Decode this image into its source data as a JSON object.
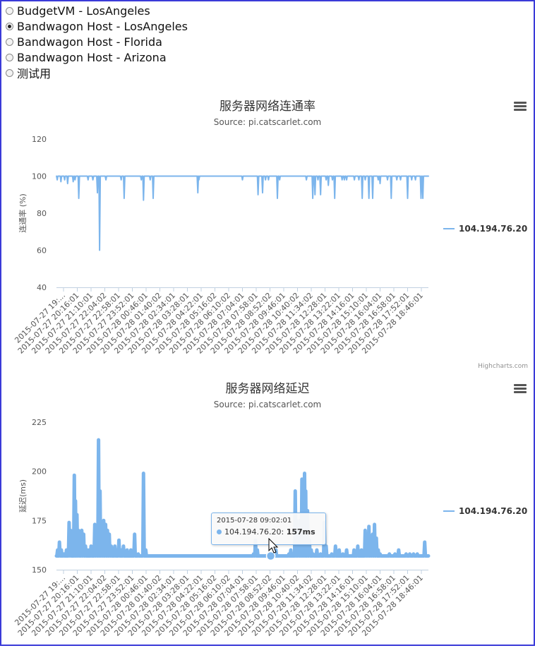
{
  "servers": [
    {
      "label": "BudgetVM - LosAngeles",
      "selected": false
    },
    {
      "label": "Bandwagon Host - LosAngeles",
      "selected": true
    },
    {
      "label": "Bandwagon Host - Florida",
      "selected": false
    },
    {
      "label": "Bandwagon Host - Arizona",
      "selected": false
    },
    {
      "label": "测试用",
      "selected": false
    }
  ],
  "credits": "Highcharts.com",
  "series_color": "#7cb5ec",
  "x_tick_labels": [
    "2015-07-27 19:...",
    "2015-07-27 20:16:01",
    "2015-07-27 21:10:01",
    "2015-07-27 22:04:02",
    "2015-07-27 22:58:01",
    "2015-07-27 23:52:01",
    "2015-07-28 00:46:01",
    "2015-07-28 01:40:02",
    "2015-07-28 02:34:01",
    "2015-07-28 03:28:01",
    "2015-07-28 04:22:01",
    "2015-07-28 05:16:02",
    "2015-07-28 06:10:02",
    "2015-07-28 07:04:01",
    "2015-07-28 07:58:01",
    "2015-07-28 08:52:02",
    "2015-07-28 09:46:01",
    "2015-07-28 10:40:02",
    "2015-07-28 11:34:02",
    "2015-07-28 12:28:01",
    "2015-07-28 13:22:01",
    "2015-07-28 14:16:01",
    "2015-07-28 15:10:01",
    "2015-07-28 16:04:01",
    "2015-07-28 16:58:01",
    "2015-07-28 17:52:01",
    "2015-07-28 18:46:01"
  ],
  "chart_data": [
    {
      "type": "line",
      "title": "服务器网络连通率",
      "subtitle": "Source: pi.catscarlet.com",
      "ylabel": "连通率 (%)",
      "ylim": [
        40,
        120
      ],
      "yticks": [
        40,
        60,
        80,
        100,
        120
      ],
      "legend_position": "right",
      "series": [
        {
          "name": "104.194.76.20",
          "baseline": 100,
          "dips": [
            [
              0.2,
              98
            ],
            [
              1.2,
              97
            ],
            [
              2.2,
              98
            ],
            [
              3.0,
              96
            ],
            [
              4.5,
              97
            ],
            [
              5.0,
              98
            ],
            [
              6.0,
              88
            ],
            [
              8.5,
              98
            ],
            [
              9.8,
              98
            ],
            [
              11.0,
              91
            ],
            [
              11.6,
              60
            ],
            [
              13.3,
              98
            ],
            [
              17.4,
              98
            ],
            [
              18.2,
              88
            ],
            [
              22.8,
              98
            ],
            [
              23.4,
              87
            ],
            [
              25.2,
              98
            ],
            [
              26.0,
              88
            ],
            [
              38.0,
              91
            ],
            [
              38.3,
              98
            ],
            [
              50.0,
              98
            ],
            [
              54.2,
              90
            ],
            [
              55.4,
              91
            ],
            [
              56.2,
              98
            ],
            [
              57.0,
              98
            ],
            [
              59.4,
              88
            ],
            [
              60.0,
              98
            ],
            [
              67.2,
              98
            ],
            [
              68.9,
              88
            ],
            [
              69.5,
              90
            ],
            [
              70.3,
              98
            ],
            [
              71.0,
              90
            ],
            [
              72.5,
              98
            ],
            [
              73.1,
              95
            ],
            [
              74.2,
              98
            ],
            [
              74.8,
              88
            ],
            [
              76.8,
              98
            ],
            [
              77.4,
              98
            ],
            [
              78.0,
              98
            ],
            [
              80.1,
              98
            ],
            [
              81.3,
              98
            ],
            [
              82.2,
              88
            ],
            [
              83.0,
              98
            ],
            [
              84.0,
              88
            ],
            [
              85.0,
              88
            ],
            [
              86.5,
              98
            ],
            [
              87.0,
              96
            ],
            [
              89.0,
              98
            ],
            [
              90.0,
              88
            ],
            [
              91.5,
              98
            ],
            [
              92.5,
              98
            ],
            [
              94.4,
              88
            ],
            [
              95.5,
              98
            ],
            [
              96.5,
              98
            ],
            [
              98.0,
              88
            ],
            [
              98.5,
              88
            ]
          ]
        }
      ]
    },
    {
      "type": "line",
      "title": "服务器网络延迟",
      "subtitle": "Source: pi.catscarlet.com",
      "ylabel": "延迟(ms)",
      "ylim": [
        150,
        225
      ],
      "yticks": [
        150,
        175,
        200,
        225
      ],
      "legend_position": "right",
      "series": [
        {
          "name": "104.194.76.20",
          "baseline": 157,
          "spikes": [
            [
              0.3,
              160
            ],
            [
              0.8,
              164
            ],
            [
              1.3,
              160
            ],
            [
              2.0,
              158
            ],
            [
              2.7,
              160
            ],
            [
              3.4,
              174
            ],
            [
              3.8,
              170
            ],
            [
              4.3,
              160
            ],
            [
              4.8,
              198
            ],
            [
              5.1,
              185
            ],
            [
              5.5,
              178
            ],
            [
              5.9,
              170
            ],
            [
              6.3,
              165
            ],
            [
              6.8,
              170
            ],
            [
              7.3,
              168
            ],
            [
              7.8,
              162
            ],
            [
              8.3,
              160
            ],
            [
              8.8,
              160
            ],
            [
              9.3,
              162
            ],
            [
              9.8,
              160
            ],
            [
              10.3,
              173
            ],
            [
              10.8,
              168
            ],
            [
              11.3,
              216
            ],
            [
              11.7,
              190
            ],
            [
              12.2,
              165
            ],
            [
              12.7,
              175
            ],
            [
              13.2,
              173
            ],
            [
              13.7,
              170
            ],
            [
              14.2,
              168
            ],
            [
              14.7,
              162
            ],
            [
              15.2,
              160
            ],
            [
              15.7,
              162
            ],
            [
              16.2,
              160
            ],
            [
              16.8,
              165
            ],
            [
              17.4,
              160
            ],
            [
              18.0,
              162
            ],
            [
              19.0,
              160
            ],
            [
              20.0,
              160
            ],
            [
              21.0,
              168
            ],
            [
              22.0,
              158
            ],
            [
              23.4,
              199
            ],
            [
              24.0,
              160
            ],
            [
              53.0,
              158
            ],
            [
              53.5,
              165
            ],
            [
              54.0,
              160
            ],
            [
              58.0,
              158
            ],
            [
              59.0,
              160
            ],
            [
              62.5,
              158
            ],
            [
              63.0,
              160
            ],
            [
              64.2,
              190
            ],
            [
              64.5,
              175
            ],
            [
              65.0,
              168
            ],
            [
              65.5,
              175
            ],
            [
              66.0,
              196
            ],
            [
              66.3,
              185
            ],
            [
              66.7,
              199
            ],
            [
              67.0,
              190
            ],
            [
              67.5,
              180
            ],
            [
              68.0,
              165
            ],
            [
              68.5,
              160
            ],
            [
              69.0,
              158
            ],
            [
              70.0,
              160
            ],
            [
              71.0,
              158
            ],
            [
              72.0,
              174
            ],
            [
              72.5,
              162
            ],
            [
              74.0,
              158
            ],
            [
              75.0,
              162
            ],
            [
              76.0,
              160
            ],
            [
              77.0,
              158
            ],
            [
              78.0,
              160
            ],
            [
              80.0,
              160
            ],
            [
              81.0,
              162
            ],
            [
              82.0,
              160
            ],
            [
              83.0,
              170
            ],
            [
              83.5,
              168
            ],
            [
              84.0,
              172
            ],
            [
              84.5,
              165
            ],
            [
              85.0,
              168
            ],
            [
              85.5,
              173
            ],
            [
              86.0,
              166
            ],
            [
              86.5,
              160
            ],
            [
              87.0,
              158
            ],
            [
              88.5,
              157
            ],
            [
              89.5,
              158
            ],
            [
              91.0,
              158
            ],
            [
              92.0,
              160
            ],
            [
              93.0,
              157
            ],
            [
              94.0,
              158
            ],
            [
              95.0,
              158
            ],
            [
              96.0,
              158
            ],
            [
              97.0,
              158
            ],
            [
              98.0,
              157
            ],
            [
              99.0,
              164
            ]
          ]
        }
      ],
      "tooltip": {
        "date": "2015-07-28 09:02:01",
        "series": "104.194.76.20",
        "value_text": "157ms",
        "x": 57.6,
        "y": 157
      }
    }
  ]
}
